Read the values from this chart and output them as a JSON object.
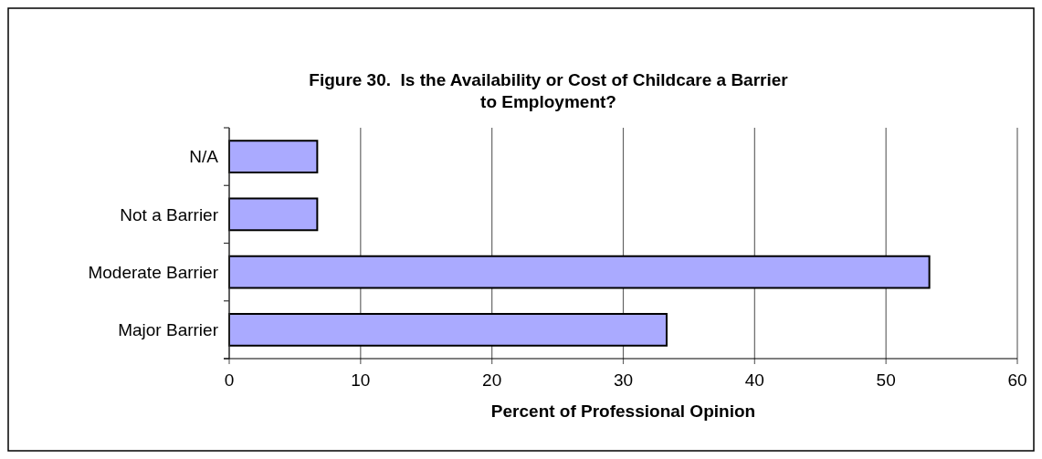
{
  "chart_data": {
    "type": "bar",
    "orientation": "horizontal",
    "title": "Figure 30.  Is the Availability or Cost of Childcare a Barrier\nto Employment?",
    "xlabel": "Percent of Professional Opinion",
    "categories": [
      "N/A",
      "Not a Barrier",
      "Moderate Barrier",
      "Major Barrier"
    ],
    "values": [
      6.7,
      6.7,
      53.3,
      33.3
    ],
    "color": "#aaaaff",
    "xlim": [
      0,
      60
    ],
    "xticks": [
      0,
      10,
      20,
      30,
      40,
      50,
      60
    ],
    "grid": "x"
  }
}
